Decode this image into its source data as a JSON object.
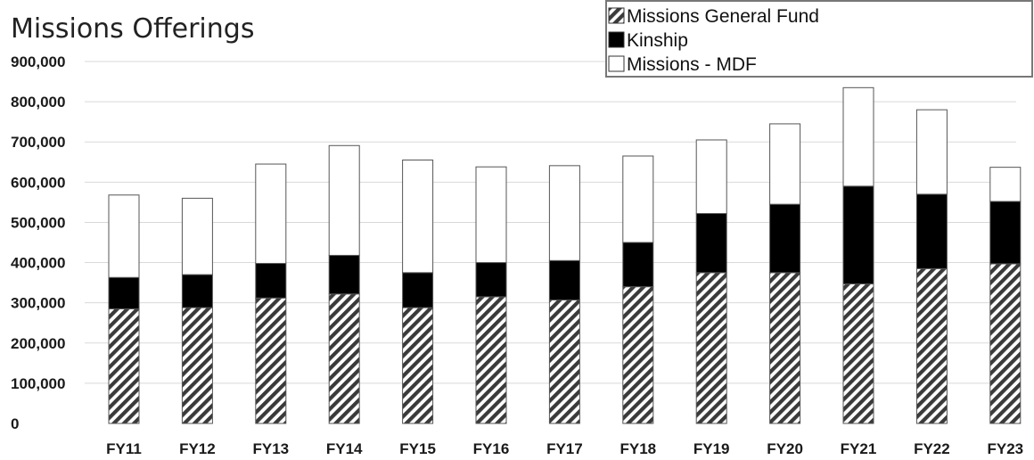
{
  "chart_data": {
    "type": "bar",
    "stacked": true,
    "title": "Missions Offerings",
    "xlabel": "",
    "ylabel": "",
    "categories": [
      "FY11",
      "FY12",
      "FY13",
      "FY14",
      "FY15",
      "FY16",
      "FY17",
      "FY18",
      "FY19",
      "FY20",
      "FY21",
      "FY22",
      "FY23"
    ],
    "ylim": [
      0,
      900000
    ],
    "yticks": [
      0,
      100000,
      200000,
      300000,
      400000,
      500000,
      600000,
      700000,
      800000,
      900000
    ],
    "ytick_labels": [
      "0",
      "100,000",
      "200,000",
      "300,000",
      "400,000",
      "500,000",
      "600,000",
      "700,000",
      "800,000",
      "900,000"
    ],
    "grid": true,
    "legend_position": "top-right",
    "series": [
      {
        "name": "Missions General Fund",
        "pattern": "diagonal-hatch",
        "values": [
          285000,
          288000,
          312000,
          322000,
          288000,
          315000,
          307000,
          340000,
          375000,
          375000,
          347000,
          385000,
          397000
        ]
      },
      {
        "name": "Kinship",
        "color": "#000000",
        "values": [
          78000,
          82000,
          86000,
          96000,
          87000,
          85000,
          98000,
          110000,
          147000,
          170000,
          243000,
          185000,
          155000
        ]
      },
      {
        "name": "Missions - MDF",
        "color": "#ffffff",
        "values": [
          205000,
          190000,
          247000,
          273000,
          280000,
          238000,
          236000,
          215000,
          183000,
          200000,
          245000,
          210000,
          85000
        ]
      }
    ]
  }
}
